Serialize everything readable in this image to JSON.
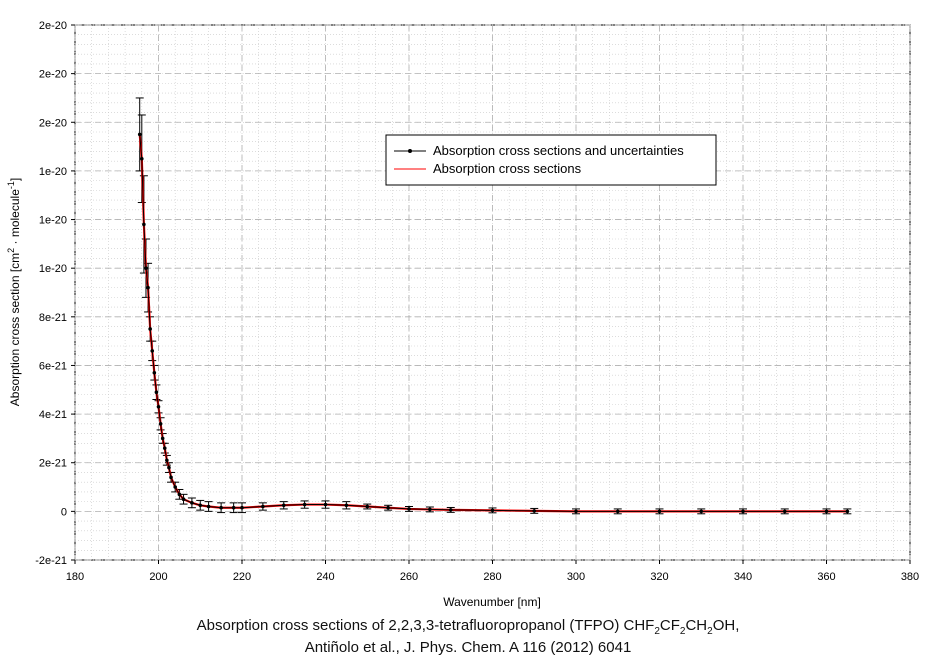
{
  "chart_data": {
    "type": "line",
    "xlabel": "Wavenumber [nm]",
    "ylabel_main": "Absorption cross section [cm",
    "ylabel_exp1": "2",
    "ylabel_mid": " · molecule",
    "ylabel_exp2": "-1",
    "ylabel_end": "]",
    "xlim": [
      180,
      380
    ],
    "ylim": [
      -2e-21,
      2e-20
    ],
    "x_ticks": [
      180,
      200,
      220,
      240,
      260,
      280,
      300,
      320,
      340,
      360,
      380
    ],
    "x_tick_labels": [
      "180",
      "200",
      "220",
      "240",
      "260",
      "280",
      "300",
      "320",
      "340",
      "360",
      "380"
    ],
    "y_ticks": [
      -2e-21,
      0,
      2e-21,
      4e-21,
      6e-21,
      8e-21,
      1e-20,
      1.2e-20,
      1.4e-20,
      1.6e-20,
      1.8e-20,
      2e-20
    ],
    "y_tick_labels": [
      "-2e-21",
      "0",
      "2e-21",
      "4e-21",
      "6e-21",
      "8e-21",
      "1e-20",
      "1e-20",
      "1e-20",
      "2e-20",
      "2e-20",
      "2e-20"
    ],
    "grid": true,
    "legend_position": "top-right",
    "series": [
      {
        "name": "Absorption cross sections and uncertainties",
        "color": "#000000",
        "marker": "dot",
        "x": [
          195.5,
          196,
          196.5,
          197,
          197.5,
          198,
          198.5,
          199,
          199.5,
          200,
          200.5,
          201,
          201.5,
          202,
          202.5,
          203,
          204,
          205,
          206,
          208,
          210,
          212,
          215,
          218,
          220,
          225,
          230,
          235,
          240,
          245,
          250,
          255,
          260,
          265,
          270,
          280,
          290,
          300,
          310,
          320,
          330,
          340,
          350,
          360,
          365
        ],
        "y": [
          1.55e-20,
          1.45e-20,
          1.18e-20,
          1e-20,
          9.2e-21,
          7.5e-21,
          6.6e-21,
          5.7e-21,
          4.9e-21,
          4.3e-21,
          3.6e-21,
          3e-21,
          2.6e-21,
          2.1e-21,
          1.8e-21,
          1.4e-21,
          1e-21,
          7e-22,
          5e-22,
          3.5e-22,
          2.5e-22,
          2e-22,
          1.5e-22,
          1.5e-22,
          1.5e-22,
          2e-22,
          2.5e-22,
          2.8e-22,
          2.8e-22,
          2.5e-22,
          2e-22,
          1.5e-22,
          1e-22,
          8e-23,
          6e-23,
          4e-23,
          2e-23,
          0,
          0,
          0,
          0,
          0,
          0,
          0,
          0
        ],
        "err": [
          1.5e-21,
          1.8e-21,
          2e-21,
          1.2e-21,
          1e-21,
          5e-22,
          4e-22,
          3e-22,
          3e-22,
          2.5e-22,
          2.5e-22,
          2e-22,
          2e-22,
          2e-22,
          2e-22,
          2e-22,
          2e-22,
          2e-22,
          2e-22,
          2e-22,
          2e-22,
          2e-22,
          2e-22,
          2e-22,
          2e-22,
          1.5e-22,
          1.5e-22,
          1.5e-22,
          1.5e-22,
          1.5e-22,
          1e-22,
          1e-22,
          1e-22,
          1e-22,
          1e-22,
          1e-22,
          1e-22,
          1e-22,
          1e-22,
          1e-22,
          1e-22,
          1e-22,
          1e-22,
          1e-22,
          1e-22
        ]
      },
      {
        "name": "Absorption cross sections",
        "color": "#ff0000",
        "x": [
          195.5,
          196,
          196.5,
          197,
          197.5,
          198,
          198.5,
          199,
          199.5,
          200,
          200.5,
          201,
          201.5,
          202,
          202.5,
          203,
          204,
          205,
          206,
          208,
          210,
          212,
          215,
          218,
          220,
          225,
          230,
          235,
          240,
          245,
          250,
          255,
          260,
          265,
          270,
          280,
          290,
          300,
          310,
          320,
          330,
          340,
          350,
          360,
          365
        ],
        "y": [
          1.55e-20,
          1.45e-20,
          1.18e-20,
          1e-20,
          9.2e-21,
          7.5e-21,
          6.6e-21,
          5.7e-21,
          4.9e-21,
          4.3e-21,
          3.6e-21,
          3e-21,
          2.6e-21,
          2.1e-21,
          1.8e-21,
          1.4e-21,
          1e-21,
          7e-22,
          5e-22,
          3.5e-22,
          2.5e-22,
          2e-22,
          1.5e-22,
          1.5e-22,
          1.5e-22,
          2e-22,
          2.5e-22,
          2.8e-22,
          2.8e-22,
          2.5e-22,
          2e-22,
          1.5e-22,
          1e-22,
          8e-23,
          6e-23,
          4e-23,
          2e-23,
          0,
          0,
          0,
          0,
          0,
          0,
          0,
          0
        ]
      }
    ]
  },
  "caption": {
    "line1_a": "Absorption cross sections of 2,2,3,3-tetrafluoropropanol (TFPO) CHF",
    "line1_s1": "2",
    "line1_b": "CF",
    "line1_s2": "2",
    "line1_c": "CH",
    "line1_s3": "2",
    "line1_d": "OH,",
    "line2": "Antiñolo et al., J. Phys. Chem. A 116 (2012) 6041"
  }
}
